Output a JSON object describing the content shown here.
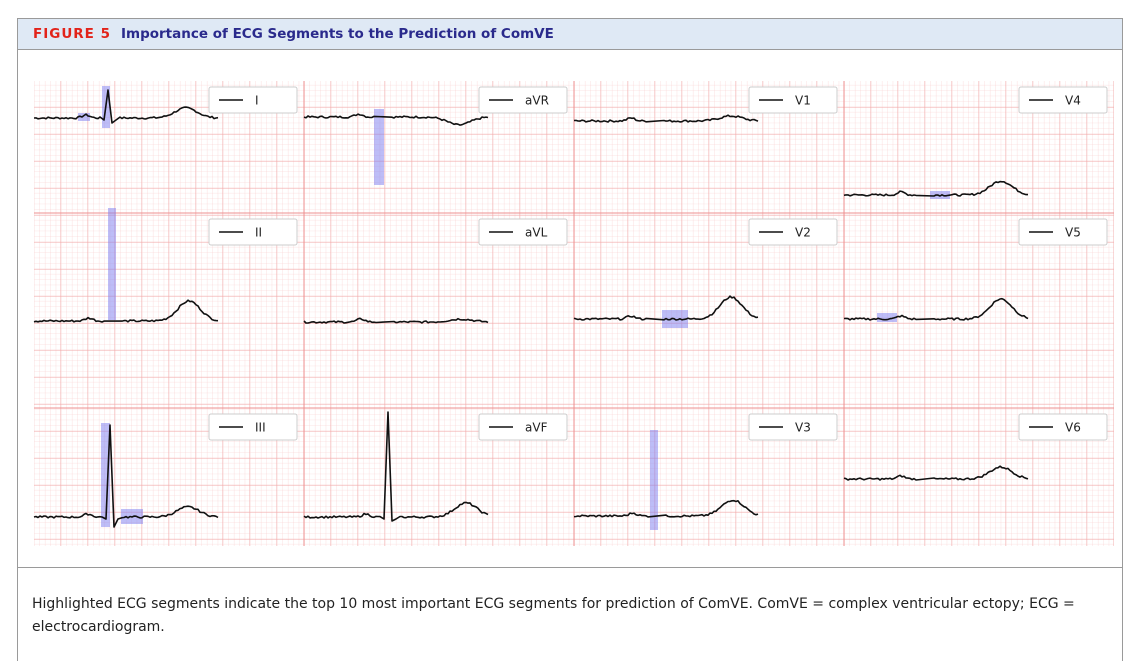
{
  "header": {
    "label": "FIGURE 5",
    "title": "Importance of ECG Segments to the Prediction of ComVE"
  },
  "leads": [
    "I",
    "aVR",
    "V1",
    "V4",
    "II",
    "aVL",
    "V2",
    "V5",
    "III",
    "aVF",
    "V3",
    "V6"
  ],
  "caption": "Highlighted ECG segments indicate the top 10 most important ECG segments for prediction of ComVE. ComVE = complex ventricular ectopy; ECG = electrocardiogram."
}
